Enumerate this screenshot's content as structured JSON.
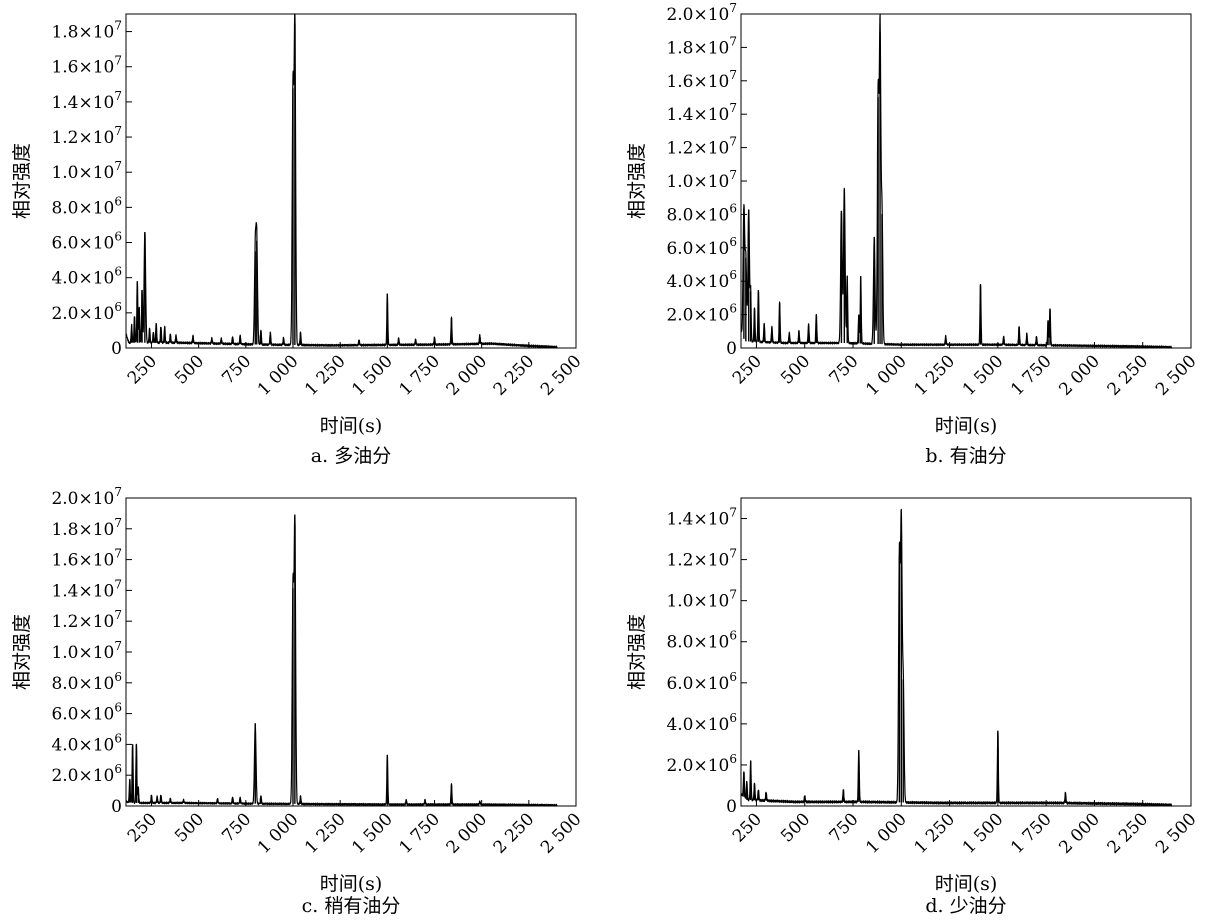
{
  "chart_data": [
    {
      "type": "line",
      "caption": "a. 多油分",
      "xlabel": "时间(s)",
      "ylabel": "相对强度",
      "xlim": [
        115,
        2500
      ],
      "ylim": [
        0,
        19000000
      ],
      "xticks": [
        {
          "v": 250,
          "label": "250"
        },
        {
          "v": 500,
          "label": "500"
        },
        {
          "v": 750,
          "label": "750"
        },
        {
          "v": 1000,
          "label": "1 000"
        },
        {
          "v": 1250,
          "label": "1 250"
        },
        {
          "v": 1500,
          "label": "1 500"
        },
        {
          "v": 1750,
          "label": "1 750"
        },
        {
          "v": 2000,
          "label": "2 000"
        },
        {
          "v": 2250,
          "label": "2 250"
        },
        {
          "v": 2500,
          "label": "2 500"
        }
      ],
      "yticks": [
        {
          "v": 0,
          "m": "0",
          "e": ""
        },
        {
          "v": 2000000,
          "m": "2.0×10",
          "e": "6"
        },
        {
          "v": 4000000,
          "m": "4.0×10",
          "e": "6"
        },
        {
          "v": 6000000,
          "m": "6.0×10",
          "e": "6"
        },
        {
          "v": 8000000,
          "m": "8.0×10",
          "e": "6"
        },
        {
          "v": 10000000,
          "m": "1.0×10",
          "e": "7"
        },
        {
          "v": 12000000,
          "m": "1.2×10",
          "e": "7"
        },
        {
          "v": 14000000,
          "m": "1.4×10",
          "e": "7"
        },
        {
          "v": 16000000,
          "m": "1.6×10",
          "e": "7"
        },
        {
          "v": 18000000,
          "m": "1.8×10",
          "e": "7"
        }
      ],
      "baseline": [
        [
          115,
          800000
        ],
        [
          130,
          300000
        ],
        [
          400,
          300000
        ],
        [
          800,
          200000
        ],
        [
          1200,
          150000
        ],
        [
          1800,
          200000
        ],
        [
          2050,
          250000
        ],
        [
          2200,
          150000
        ],
        [
          2400,
          50000
        ]
      ],
      "peaks": [
        [
          145,
          1000000
        ],
        [
          160,
          1500000
        ],
        [
          175,
          3500000
        ],
        [
          185,
          2000000
        ],
        [
          200,
          3000000
        ],
        [
          215,
          6300000
        ],
        [
          240,
          800000
        ],
        [
          260,
          600000
        ],
        [
          275,
          1100000
        ],
        [
          300,
          900000
        ],
        [
          320,
          900000
        ],
        [
          350,
          500000
        ],
        [
          380,
          400000
        ],
        [
          470,
          400000
        ],
        [
          570,
          300000
        ],
        [
          620,
          300000
        ],
        [
          680,
          400000
        ],
        [
          720,
          500000
        ],
        [
          800,
          5300000
        ],
        [
          808,
          5900000
        ],
        [
          830,
          800000
        ],
        [
          880,
          700000
        ],
        [
          950,
          400000
        ],
        [
          1000,
          14600000
        ],
        [
          1010,
          18300000
        ],
        [
          1040,
          700000
        ],
        [
          1350,
          300000
        ],
        [
          1500,
          2900000
        ],
        [
          1560,
          400000
        ],
        [
          1650,
          300000
        ],
        [
          1750,
          400000
        ],
        [
          1840,
          1500000
        ],
        [
          1990,
          500000
        ]
      ]
    },
    {
      "type": "line",
      "caption": "b. 有油分",
      "xlabel": "时间(s)",
      "ylabel": "相对强度",
      "xlim": [
        170,
        2500
      ],
      "ylim": [
        0,
        20000000
      ],
      "xticks": [
        {
          "v": 250,
          "label": "250"
        },
        {
          "v": 500,
          "label": "500"
        },
        {
          "v": 750,
          "label": "750"
        },
        {
          "v": 1000,
          "label": "1 000"
        },
        {
          "v": 1250,
          "label": "1 250"
        },
        {
          "v": 1500,
          "label": "1 500"
        },
        {
          "v": 1750,
          "label": "1 750"
        },
        {
          "v": 2000,
          "label": "2 000"
        },
        {
          "v": 2250,
          "label": "2 250"
        },
        {
          "v": 2500,
          "label": "2 500"
        }
      ],
      "yticks": [
        {
          "v": 0,
          "m": "0",
          "e": ""
        },
        {
          "v": 2000000,
          "m": "2.0×10",
          "e": "6"
        },
        {
          "v": 4000000,
          "m": "4.0×10",
          "e": "6"
        },
        {
          "v": 6000000,
          "m": "6.0×10",
          "e": "6"
        },
        {
          "v": 8000000,
          "m": "8.0×10",
          "e": "6"
        },
        {
          "v": 10000000,
          "m": "1.0×10",
          "e": "7"
        },
        {
          "v": 12000000,
          "m": "1.2×10",
          "e": "7"
        },
        {
          "v": 14000000,
          "m": "1.4×10",
          "e": "7"
        },
        {
          "v": 16000000,
          "m": "1.6×10",
          "e": "7"
        },
        {
          "v": 18000000,
          "m": "1.8×10",
          "e": "7"
        },
        {
          "v": 20000000,
          "m": "2.0×10",
          "e": "7"
        }
      ],
      "baseline": [
        [
          170,
          1000000
        ],
        [
          190,
          400000
        ],
        [
          400,
          300000
        ],
        [
          700,
          300000
        ],
        [
          1000,
          200000
        ],
        [
          1500,
          200000
        ],
        [
          1850,
          150000
        ],
        [
          2200,
          100000
        ],
        [
          2400,
          50000
        ]
      ],
      "peaks": [
        [
          185,
          7800000
        ],
        [
          195,
          5000000
        ],
        [
          210,
          7900000
        ],
        [
          220,
          3000000
        ],
        [
          240,
          2000000
        ],
        [
          260,
          3100000
        ],
        [
          290,
          1100000
        ],
        [
          330,
          900000
        ],
        [
          370,
          2400000
        ],
        [
          420,
          600000
        ],
        [
          470,
          700000
        ],
        [
          520,
          1100000
        ],
        [
          560,
          1700000
        ],
        [
          690,
          7900000
        ],
        [
          705,
          9200000
        ],
        [
          720,
          4000000
        ],
        [
          790,
          4000000
        ],
        [
          780,
          1700000
        ],
        [
          860,
          6400000
        ],
        [
          880,
          14800000
        ],
        [
          890,
          18700000
        ],
        [
          900,
          7800000
        ],
        [
          1230,
          500000
        ],
        [
          1410,
          3600000
        ],
        [
          1530,
          500000
        ],
        [
          1610,
          1100000
        ],
        [
          1650,
          700000
        ],
        [
          1700,
          500000
        ],
        [
          1760,
          1500000
        ],
        [
          1770,
          2200000
        ]
      ]
    },
    {
      "type": "line",
      "caption": "c. 稍有油分",
      "xlabel": "时间(s)",
      "ylabel": "相对强度",
      "xlim": [
        115,
        2500
      ],
      "ylim": [
        0,
        20000000
      ],
      "xticks": [
        {
          "v": 250,
          "label": "250"
        },
        {
          "v": 500,
          "label": "500"
        },
        {
          "v": 750,
          "label": "750"
        },
        {
          "v": 1000,
          "label": "1 000"
        },
        {
          "v": 1250,
          "label": "1 250"
        },
        {
          "v": 1500,
          "label": "1 500"
        },
        {
          "v": 1750,
          "label": "1 750"
        },
        {
          "v": 2000,
          "label": "2 000"
        },
        {
          "v": 2250,
          "label": "2 250"
        },
        {
          "v": 2500,
          "label": "2 500"
        }
      ],
      "yticks": [
        {
          "v": 0,
          "m": "0",
          "e": ""
        },
        {
          "v": 2000000,
          "m": "2.0×10",
          "e": "6"
        },
        {
          "v": 4000000,
          "m": "4.0×10",
          "e": "6"
        },
        {
          "v": 6000000,
          "m": "6.0×10",
          "e": "6"
        },
        {
          "v": 8000000,
          "m": "8.0×10",
          "e": "6"
        },
        {
          "v": 10000000,
          "m": "1.0×10",
          "e": "7"
        },
        {
          "v": 12000000,
          "m": "1.2×10",
          "e": "7"
        },
        {
          "v": 14000000,
          "m": "1.4×10",
          "e": "7"
        },
        {
          "v": 16000000,
          "m": "1.6×10",
          "e": "7"
        },
        {
          "v": 18000000,
          "m": "1.8×10",
          "e": "7"
        },
        {
          "v": 20000000,
          "m": "2.0×10",
          "e": "7"
        }
      ],
      "baseline": [
        [
          115,
          300000
        ],
        [
          140,
          200000
        ],
        [
          400,
          200000
        ],
        [
          800,
          150000
        ],
        [
          1500,
          100000
        ],
        [
          2000,
          100000
        ],
        [
          2400,
          50000
        ]
      ],
      "peaks": [
        [
          135,
          1500000
        ],
        [
          150,
          3800000
        ],
        [
          170,
          3800000
        ],
        [
          180,
          1000000
        ],
        [
          250,
          500000
        ],
        [
          280,
          400000
        ],
        [
          300,
          500000
        ],
        [
          350,
          300000
        ],
        [
          420,
          200000
        ],
        [
          600,
          300000
        ],
        [
          680,
          400000
        ],
        [
          720,
          400000
        ],
        [
          800,
          5200000
        ],
        [
          830,
          500000
        ],
        [
          1000,
          14000000
        ],
        [
          1010,
          18200000
        ],
        [
          1040,
          500000
        ],
        [
          1500,
          3200000
        ],
        [
          1600,
          300000
        ],
        [
          1700,
          300000
        ],
        [
          1840,
          1300000
        ],
        [
          1990,
          200000
        ]
      ]
    },
    {
      "type": "line",
      "caption": "d. 少油分",
      "xlabel": "时间(s)",
      "ylabel": "相对强度",
      "xlim": [
        170,
        2500
      ],
      "ylim": [
        0,
        15000000
      ],
      "xticks": [
        {
          "v": 250,
          "label": "250"
        },
        {
          "v": 500,
          "label": "500"
        },
        {
          "v": 750,
          "label": "750"
        },
        {
          "v": 1000,
          "label": "1 000"
        },
        {
          "v": 1250,
          "label": "1 250"
        },
        {
          "v": 1500,
          "label": "1 500"
        },
        {
          "v": 1750,
          "label": "1 750"
        },
        {
          "v": 2000,
          "label": "2 000"
        },
        {
          "v": 2250,
          "label": "2 250"
        },
        {
          "v": 2500,
          "label": "2 500"
        }
      ],
      "yticks": [
        {
          "v": 0,
          "m": "0",
          "e": ""
        },
        {
          "v": 2000000,
          "m": "2.0×10",
          "e": "6"
        },
        {
          "v": 4000000,
          "m": "4.0×10",
          "e": "6"
        },
        {
          "v": 6000000,
          "m": "6.0×10",
          "e": "6"
        },
        {
          "v": 8000000,
          "m": "8.0×10",
          "e": "6"
        },
        {
          "v": 10000000,
          "m": "1.0×10",
          "e": "7"
        },
        {
          "v": 12000000,
          "m": "1.2×10",
          "e": "7"
        },
        {
          "v": 14000000,
          "m": "1.4×10",
          "e": "7"
        }
      ],
      "baseline": [
        [
          170,
          600000
        ],
        [
          200,
          300000
        ],
        [
          450,
          200000
        ],
        [
          800,
          200000
        ],
        [
          1200,
          150000
        ],
        [
          1800,
          150000
        ],
        [
          2200,
          100000
        ],
        [
          2400,
          50000
        ]
      ],
      "peaks": [
        [
          185,
          1200000
        ],
        [
          200,
          900000
        ],
        [
          220,
          1900000
        ],
        [
          240,
          800000
        ],
        [
          260,
          500000
        ],
        [
          300,
          400000
        ],
        [
          500,
          300000
        ],
        [
          700,
          600000
        ],
        [
          780,
          2500000
        ],
        [
          990,
          12000000
        ],
        [
          1000,
          13500000
        ],
        [
          1010,
          6000000
        ],
        [
          1500,
          3500000
        ],
        [
          1850,
          500000
        ]
      ]
    }
  ]
}
